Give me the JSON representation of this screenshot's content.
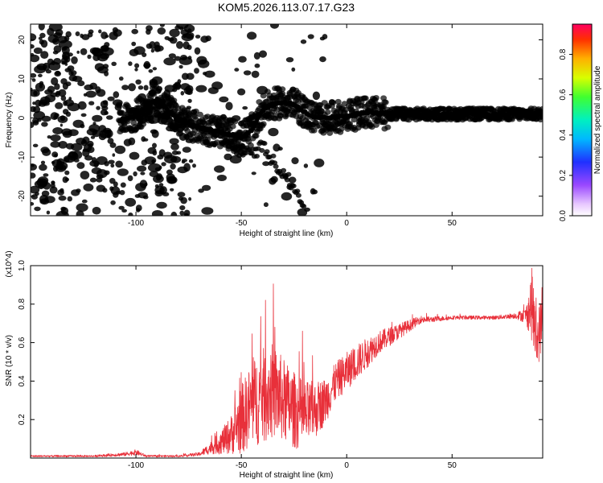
{
  "figure": {
    "title": "KOM5.2026.113.07.17.G23"
  },
  "chart_data": [
    {
      "type": "heatmap",
      "title": "KOM5.2026.113.07.17.G23",
      "xlabel": "Height of straight line (km)",
      "ylabel": "Frequency (Hz)",
      "xlim": [
        -150,
        93
      ],
      "ylim": [
        -25,
        24
      ],
      "x_ticks": [
        -100,
        -50,
        0,
        50
      ],
      "y_ticks": [
        -20,
        -10,
        0,
        10,
        20
      ],
      "colorbar": {
        "label": "Normalized spectral amplitude",
        "range": [
          0,
          0.95
        ],
        "ticks": [
          0.0,
          0.2,
          0.4,
          0.6,
          0.8
        ]
      },
      "ridge": {
        "x": [
          -108,
          -100,
          -90,
          -85,
          -78,
          -70,
          -60,
          -50,
          -45,
          -40,
          -35,
          -30,
          -25,
          -20,
          -15,
          -10,
          0,
          10,
          20,
          30,
          50,
          70,
          85,
          93
        ],
        "y": [
          -0.5,
          0.5,
          5,
          2,
          -1,
          -2.5,
          -3.5,
          -5,
          -3,
          2,
          3.5,
          4,
          3.5,
          1.5,
          0,
          0,
          0.5,
          1.5,
          1,
          1,
          1,
          1,
          1,
          1
        ]
      },
      "branch": {
        "x": [
          -60,
          -55,
          -50,
          -45,
          -40,
          -35,
          -30,
          -25,
          -20
        ],
        "y": [
          -6,
          -7,
          -8.5,
          -9.5,
          -7,
          -11,
          -14,
          -18,
          -22
        ]
      }
    },
    {
      "type": "line",
      "xlabel": "Height of straight line (km)",
      "ylabel": "SNR (10 * v/v)",
      "y_multiplier": "(x10^4)",
      "xlim": [
        -150,
        93
      ],
      "ylim": [
        0,
        1.0
      ],
      "x_ticks": [
        -100,
        -50,
        0,
        50
      ],
      "y_ticks": [
        0.2,
        0.4,
        0.6,
        0.8,
        1.0
      ],
      "series": [
        {
          "name": "SNR",
          "color": "#e8303a",
          "x": [
            -150,
            -120,
            -105,
            -100,
            -95,
            -80,
            -70,
            -65,
            -60,
            -55,
            -50,
            -45,
            -40,
            -35,
            -30,
            -25,
            -20,
            -15,
            -10,
            -5,
            0,
            5,
            10,
            15,
            20,
            25,
            30,
            35,
            40,
            50,
            60,
            70,
            80,
            85,
            88,
            90,
            93
          ],
          "y": [
            0.01,
            0.01,
            0.02,
            0.03,
            0.01,
            0.01,
            0.02,
            0.05,
            0.08,
            0.12,
            0.2,
            0.28,
            0.32,
            0.35,
            0.3,
            0.25,
            0.22,
            0.25,
            0.3,
            0.4,
            0.45,
            0.5,
            0.55,
            0.6,
            0.63,
            0.66,
            0.69,
            0.72,
            0.72,
            0.73,
            0.73,
            0.73,
            0.74,
            0.74,
            0.8,
            0.6,
            0.72
          ],
          "noise": [
            0.005,
            0.005,
            0.01,
            0.015,
            0.005,
            0.005,
            0.01,
            0.03,
            0.06,
            0.1,
            0.18,
            0.22,
            0.25,
            0.25,
            0.22,
            0.2,
            0.18,
            0.15,
            0.12,
            0.1,
            0.1,
            0.09,
            0.08,
            0.06,
            0.05,
            0.04,
            0.03,
            0.02,
            0.015,
            0.01,
            0.01,
            0.01,
            0.015,
            0.04,
            0.2,
            0.15,
            0.15
          ]
        }
      ]
    }
  ]
}
